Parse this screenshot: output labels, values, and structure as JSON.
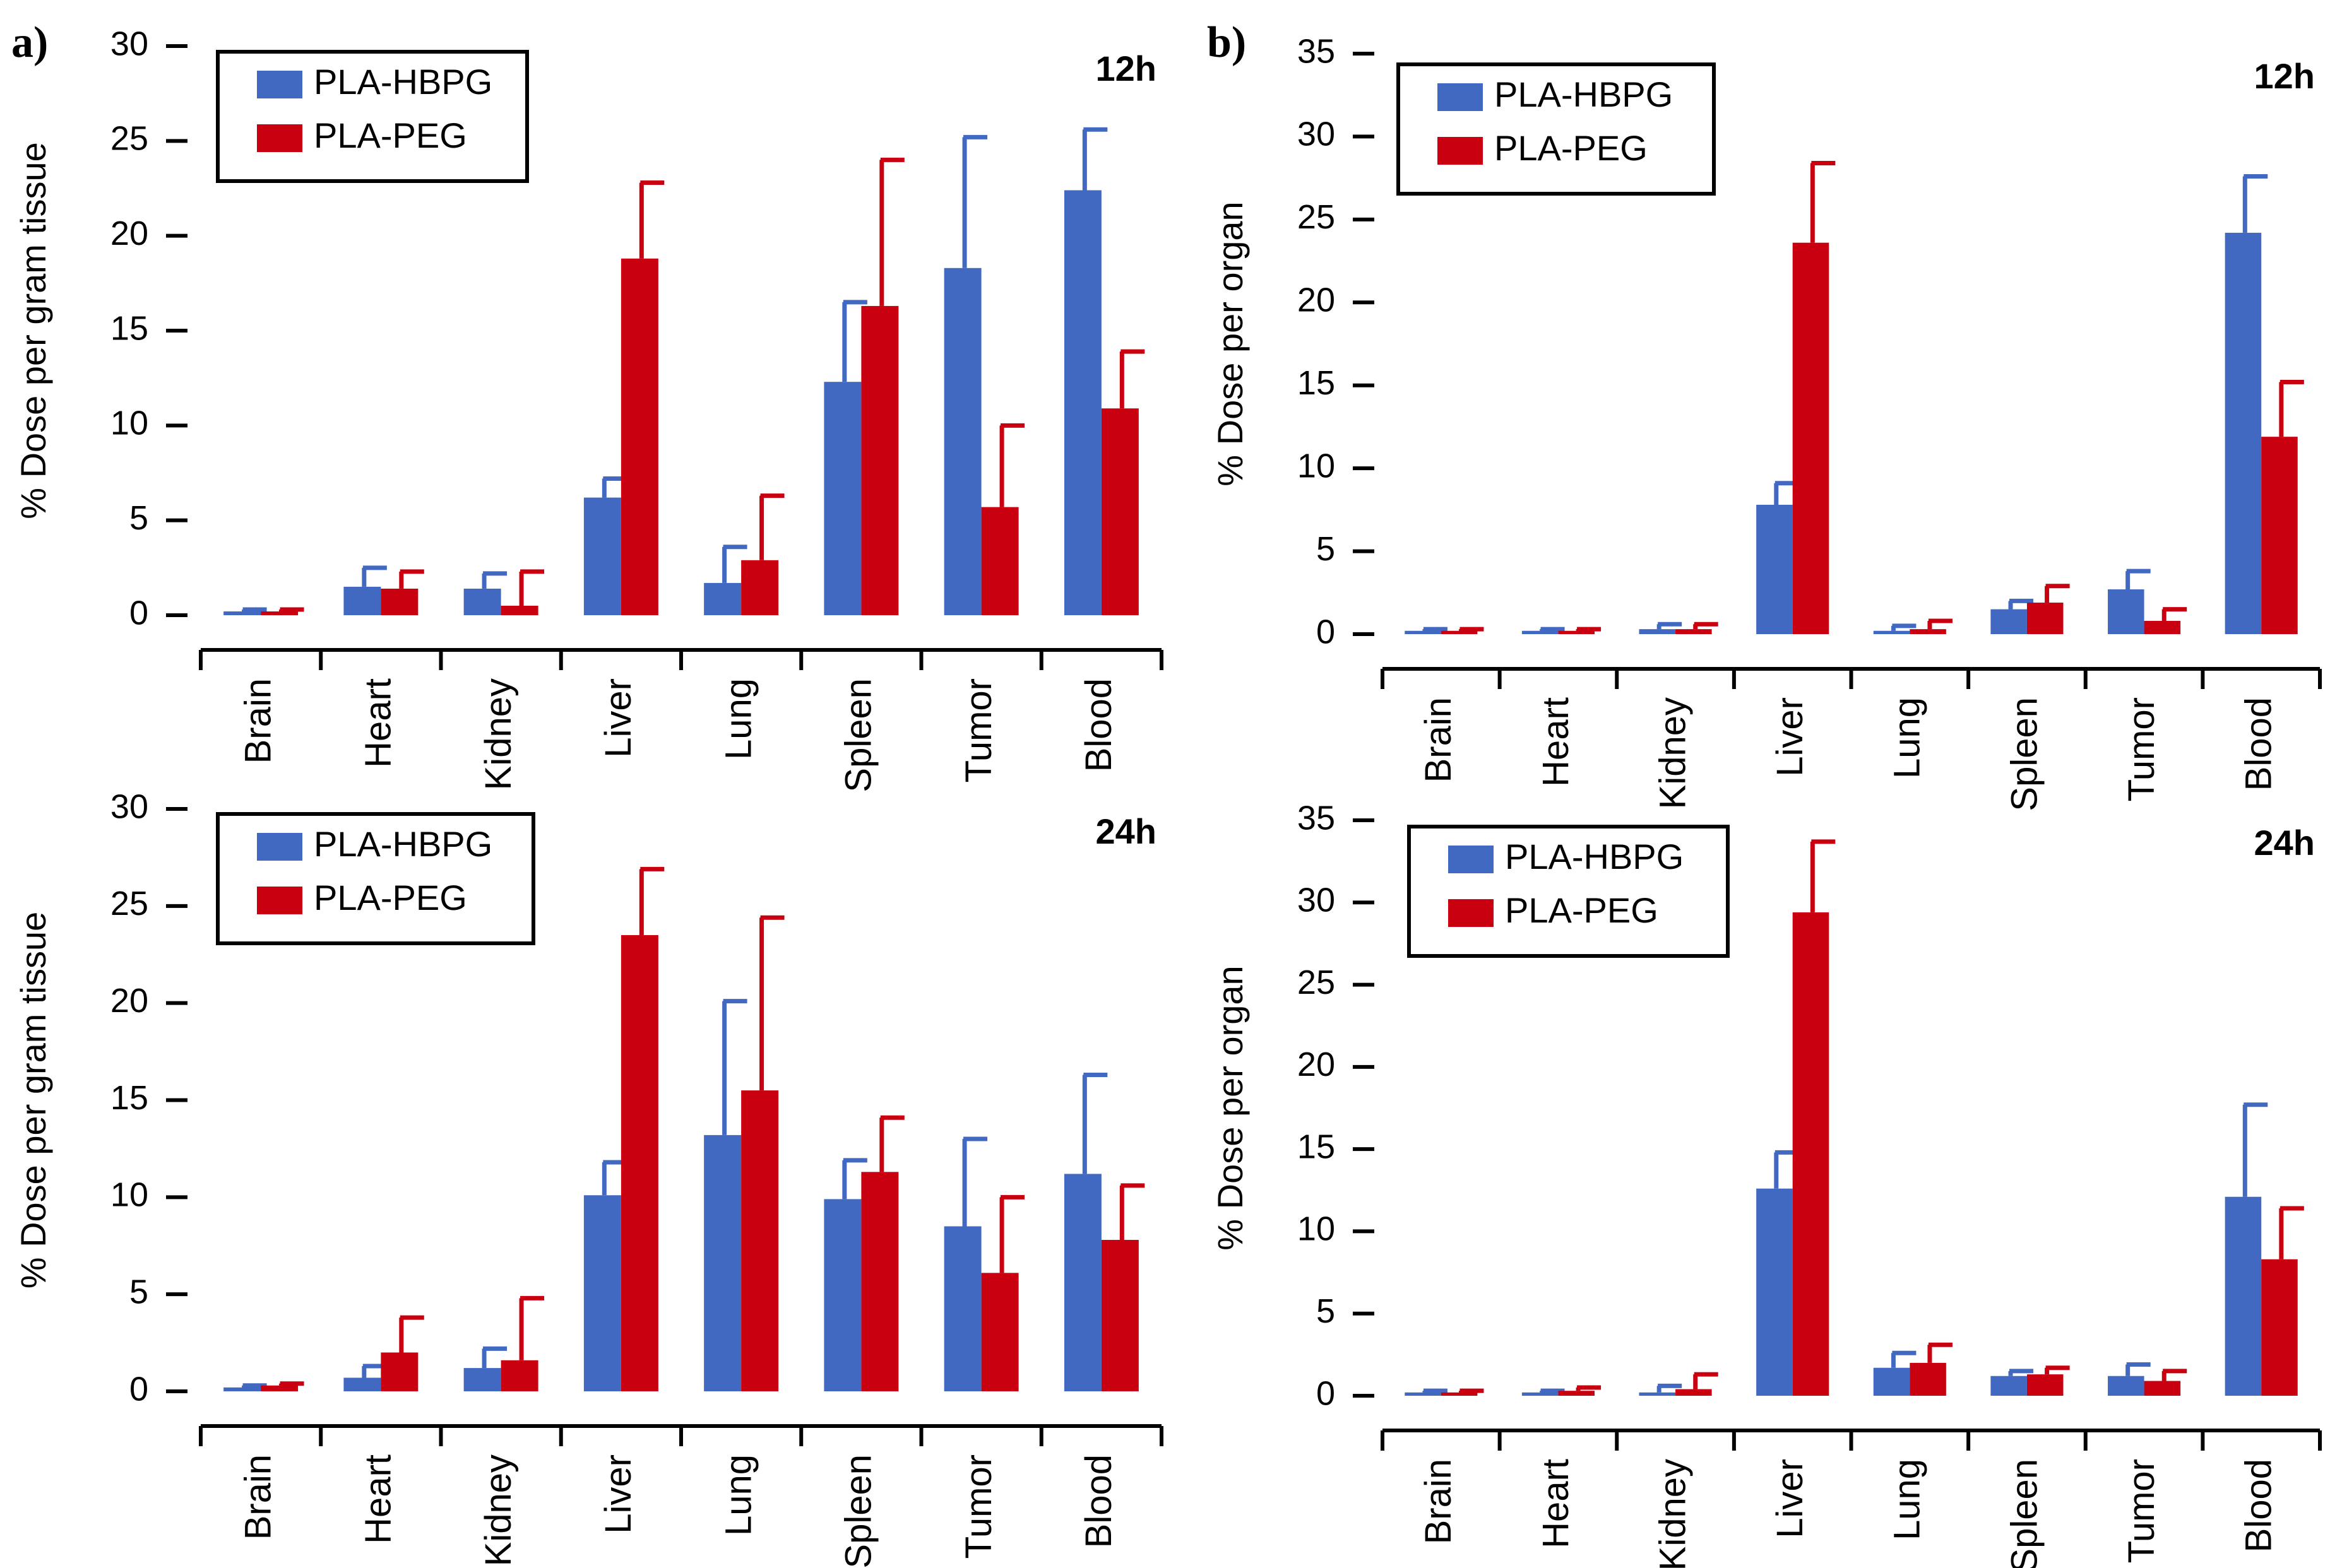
{
  "panel_letters": [
    "a)",
    "b)"
  ],
  "colors": {
    "hbpg": "#4169C1",
    "peg": "#C8000F"
  },
  "chart_data": [
    {
      "type": "bar",
      "panel": "a)",
      "time": "12h",
      "ylabel": "% Dose per gram tissue",
      "ylim": [
        0,
        30
      ],
      "yticks": [
        "0",
        "5",
        "10",
        "15",
        "20",
        "25",
        "30"
      ],
      "categories": [
        "Brain",
        "Heart",
        "Kidney",
        "Liver",
        "Lung",
        "Spleen",
        "Tumor",
        "Blood"
      ],
      "series": [
        {
          "name": "PLA-HBPG",
          "values": [
            0.2,
            1.5,
            1.4,
            6.2,
            1.7,
            12.3,
            18.3,
            22.4
          ],
          "errors": [
            0.1,
            1.0,
            0.8,
            1.0,
            1.9,
            4.2,
            6.9,
            3.2
          ]
        },
        {
          "name": "PLA-PEG",
          "values": [
            0.2,
            1.4,
            0.5,
            18.8,
            2.9,
            16.3,
            5.7,
            10.9
          ],
          "errors": [
            0.1,
            0.9,
            1.8,
            4.0,
            3.4,
            7.7,
            4.3,
            3.0
          ]
        }
      ]
    },
    {
      "type": "bar",
      "panel": "b)",
      "time": "12h",
      "ylabel": "% Dose per organ",
      "ylim": [
        0,
        35
      ],
      "yticks": [
        "0",
        "5",
        "10",
        "15",
        "20",
        "25",
        "30",
        "35"
      ],
      "categories": [
        "Brain",
        "Heart",
        "Kidney",
        "Liver",
        "Lung",
        "Spleen",
        "Tumor",
        "Blood"
      ],
      "series": [
        {
          "name": "PLA-HBPG",
          "values": [
            0.2,
            0.2,
            0.3,
            7.8,
            0.2,
            1.5,
            2.7,
            24.2
          ],
          "errors": [
            0.1,
            0.1,
            0.3,
            1.3,
            0.3,
            0.5,
            1.1,
            3.4
          ]
        },
        {
          "name": "PLA-PEG",
          "values": [
            0.2,
            0.2,
            0.3,
            23.6,
            0.3,
            1.9,
            0.8,
            11.9
          ],
          "errors": [
            0.1,
            0.1,
            0.3,
            4.8,
            0.5,
            1.0,
            0.7,
            3.3
          ]
        }
      ]
    },
    {
      "type": "bar",
      "panel": "a)",
      "time": "24h",
      "ylabel": "% Dose per gram tissue",
      "ylim": [
        0,
        30
      ],
      "yticks": [
        "0",
        "5",
        "10",
        "15",
        "20",
        "25",
        "30"
      ],
      "categories": [
        "Brain",
        "Heart",
        "Kidney",
        "Liver",
        "Lung",
        "Spleen",
        "Tumor",
        "Blood"
      ],
      "series": [
        {
          "name": "PLA-HBPG",
          "values": [
            0.2,
            0.7,
            1.2,
            10.1,
            13.2,
            9.9,
            8.5,
            11.2
          ],
          "errors": [
            0.1,
            0.6,
            1.0,
            1.7,
            6.9,
            2.0,
            4.5,
            5.1
          ]
        },
        {
          "name": "PLA-PEG",
          "values": [
            0.3,
            2.0,
            1.6,
            23.5,
            15.5,
            11.3,
            6.1,
            7.8
          ],
          "errors": [
            0.1,
            1.8,
            3.2,
            3.4,
            8.9,
            2.8,
            3.9,
            2.8
          ]
        }
      ]
    },
    {
      "type": "bar",
      "panel": "b)",
      "time": "24h",
      "ylabel": "% Dose per organ",
      "ylim": [
        0,
        35
      ],
      "yticks": [
        "0",
        "5",
        "10",
        "15",
        "20",
        "25",
        "30",
        "35"
      ],
      "categories": [
        "Brain",
        "Heart",
        "Kidney",
        "Liver",
        "Lung",
        "Spleen",
        "Tumor",
        "Blood"
      ],
      "series": [
        {
          "name": "PLA-HBPG",
          "values": [
            0.2,
            0.2,
            0.2,
            12.6,
            1.7,
            1.2,
            1.2,
            12.1
          ],
          "errors": [
            0.1,
            0.1,
            0.4,
            2.2,
            0.9,
            0.3,
            0.7,
            5.6
          ]
        },
        {
          "name": "PLA-PEG",
          "values": [
            0.2,
            0.3,
            0.4,
            29.4,
            2.0,
            1.3,
            0.9,
            8.3
          ],
          "errors": [
            0.1,
            0.2,
            0.9,
            4.3,
            1.1,
            0.4,
            0.6,
            3.1
          ]
        }
      ]
    }
  ]
}
